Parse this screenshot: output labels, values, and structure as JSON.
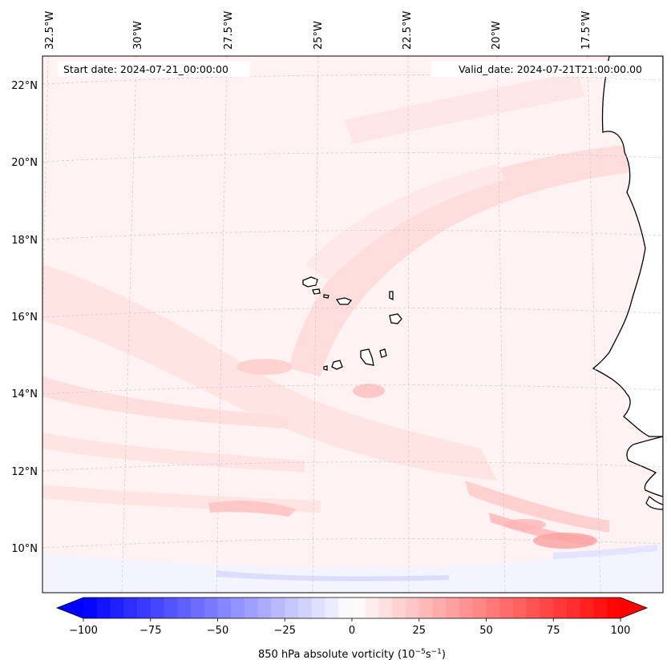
{
  "map": {
    "start_date": "Start date: 2024-07-21_00:00:00",
    "valid_date": "Valid_date: 2024-07-21T21:00:00.00",
    "lon_labels": [
      "32.5°W",
      "30°W",
      "27.5°W",
      "25°W",
      "22.5°W",
      "20°W",
      "17.5°W"
    ],
    "lat_labels": [
      "22°N",
      "20°N",
      "18°N",
      "16°N",
      "14°N",
      "12°N",
      "10°N"
    ]
  },
  "colorbar": {
    "ticks": [
      "−100",
      "−75",
      "−50",
      "−25",
      "0",
      "25",
      "50",
      "75",
      "100"
    ],
    "label": "850 hPa absolute vorticity (10",
    "label_sup1": "−5",
    "label_mid": "s",
    "label_sup2": "−1",
    "label_end": ")",
    "low_color": "#0000ff",
    "mid_color": "#ffffff",
    "high_color": "#ff0000"
  }
}
